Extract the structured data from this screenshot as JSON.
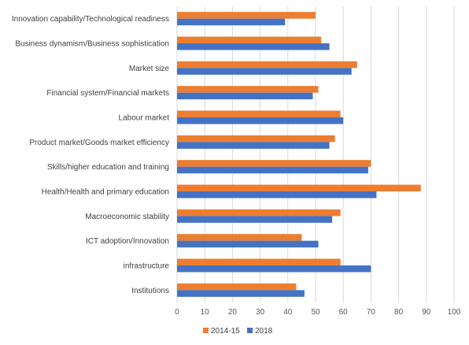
{
  "chart_data": {
    "type": "bar",
    "orientation": "horizontal",
    "categories": [
      "Innovation capability/Technological readiness",
      "Business dynamism/Business sophistication",
      "Market size",
      "Financial system/Financial markets",
      "Labour market",
      "Product market/Goods market efficiency",
      "Skills/higher education and training",
      "Health/Health and primary education",
      "Macroeconomic stability",
      "ICT adoption/Innovation",
      "infrastructure",
      "Institutions"
    ],
    "series": [
      {
        "name": "2014-15",
        "color": "#ed7d31",
        "values": [
          50,
          52,
          65,
          51,
          59,
          57,
          70,
          88,
          59,
          45,
          59,
          43
        ]
      },
      {
        "name": "2018",
        "color": "#4472c4",
        "values": [
          39,
          55,
          63,
          49,
          60,
          55,
          69,
          72,
          56,
          51,
          70,
          46
        ]
      }
    ],
    "xlim": [
      0,
      100
    ],
    "xticks": [
      "0",
      "10",
      "20",
      "30",
      "40",
      "50",
      "60",
      "70",
      "80",
      "90",
      "100"
    ],
    "grid": true,
    "legend": "bottom"
  }
}
